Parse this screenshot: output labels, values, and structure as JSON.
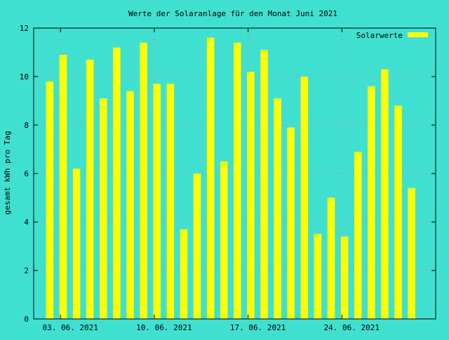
{
  "chart_data": {
    "type": "bar",
    "title": "Werte der Solaranlage für den Monat Juni 2021",
    "xlabel": "",
    "ylabel": "gesamt kWh pro Tag",
    "ylim": [
      0,
      12
    ],
    "yticks": [
      0,
      2,
      4,
      6,
      8,
      10,
      12
    ],
    "xlim": [
      "2021-06-01",
      "2021-07-01"
    ],
    "xticks": [
      {
        "date": "2021-06-03",
        "label": "03. 06. 2021"
      },
      {
        "date": "2021-06-10",
        "label": "10. 06. 2021"
      },
      {
        "date": "2021-06-17",
        "label": "17. 06. 2021"
      },
      {
        "date": "2021-06-24",
        "label": "24. 06. 2021"
      }
    ],
    "grid": true,
    "legend": {
      "position": "top-right",
      "entries": [
        "Solarwerte"
      ]
    },
    "series": [
      {
        "name": "Solarwerte",
        "color": "#ffff00",
        "x": [
          "2021-06-01",
          "2021-06-02",
          "2021-06-03",
          "2021-06-04",
          "2021-06-05",
          "2021-06-06",
          "2021-06-07",
          "2021-06-08",
          "2021-06-09",
          "2021-06-10",
          "2021-06-11",
          "2021-06-12",
          "2021-06-13",
          "2021-06-14",
          "2021-06-15",
          "2021-06-16",
          "2021-06-17",
          "2021-06-18",
          "2021-06-19",
          "2021-06-20",
          "2021-06-21",
          "2021-06-22",
          "2021-06-23",
          "2021-06-24",
          "2021-06-25",
          "2021-06-26",
          "2021-06-27",
          "2021-06-28",
          "2021-06-29",
          "2021-06-30"
        ],
        "values": [
          9.8,
          10.9,
          6.2,
          10.7,
          9.1,
          11.2,
          9.4,
          11.4,
          9.7,
          9.7,
          3.7,
          6.0,
          11.6,
          6.5,
          11.4,
          10.2,
          11.1,
          9.1,
          7.9,
          10.0,
          3.5,
          5.0,
          3.4,
          6.9,
          9.6,
          10.3,
          8.8,
          5.4,
          0,
          0
        ]
      }
    ]
  }
}
